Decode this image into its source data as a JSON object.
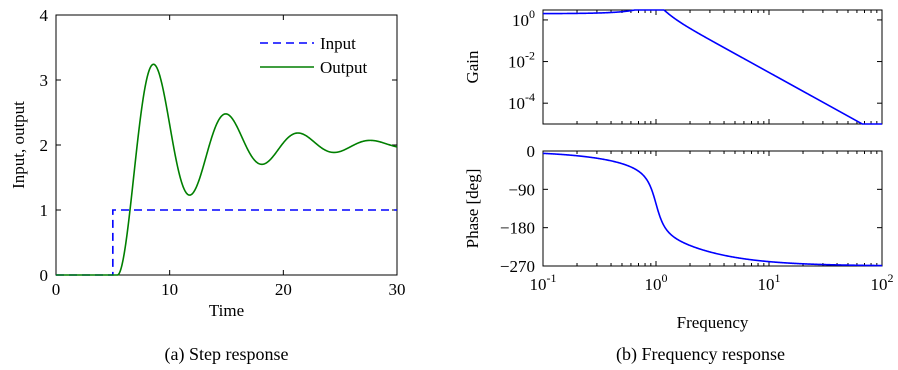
{
  "figure": {
    "caption_a": "(a) Step response",
    "caption_b": "(b) Frequency response"
  },
  "chart_data": [
    {
      "type": "line",
      "xlabel": "Time",
      "ylabel": "Input, output",
      "xlim": [
        0,
        30
      ],
      "ylim": [
        0,
        4
      ],
      "xticks": [
        0,
        10,
        20,
        30
      ],
      "yticks": [
        0,
        1,
        2,
        3,
        4
      ],
      "legend_position": "top-right",
      "grid": false,
      "series": [
        {
          "name": "Input",
          "color": "#0000ff",
          "style": "dashed",
          "x": [
            0,
            5,
            5,
            30
          ],
          "y": [
            0,
            0,
            1,
            1
          ]
        },
        {
          "name": "Output",
          "color": "#007f00",
          "style": "solid",
          "system": {
            "step_time": 5,
            "gain": 2,
            "zeta": 0.15,
            "omega_n": 1.0,
            "delay": 0.4
          }
        }
      ]
    },
    {
      "type": "line",
      "ylabel": "Gain",
      "xscale": "log",
      "yscale": "log",
      "xlim": [
        0.1,
        100
      ],
      "ylim": [
        1e-05,
        3
      ],
      "yticks": [
        1,
        0.01,
        0.0001
      ],
      "ytick_labels": [
        {
          "base": "10",
          "exp": "0"
        },
        {
          "base": "10",
          "exp": "-2"
        },
        {
          "base": "10",
          "exp": "-4"
        }
      ],
      "grid": false,
      "series": [
        {
          "color": "#0000ff",
          "system": {
            "gain": 2,
            "zeta": 0.15,
            "omega_n": 1.0,
            "pole": 1.5
          }
        }
      ]
    },
    {
      "type": "line",
      "xlabel": "Frequency",
      "ylabel": "Phase [deg]",
      "xscale": "log",
      "xlim": [
        0.1,
        100
      ],
      "ylim": [
        -270,
        0
      ],
      "yticks": [
        0,
        -90,
        -180,
        -270
      ],
      "xtick_labels": [
        {
          "base": "10",
          "exp": "-1",
          "value": 0.1
        },
        {
          "base": "10",
          "exp": "0",
          "value": 1
        },
        {
          "base": "10",
          "exp": "1",
          "value": 10
        },
        {
          "base": "10",
          "exp": "2",
          "value": 100
        }
      ],
      "grid": false,
      "series": [
        {
          "color": "#0000ff",
          "system": {
            "zeta": 0.15,
            "omega_n": 1.0,
            "pole": 1.5
          }
        }
      ]
    }
  ]
}
